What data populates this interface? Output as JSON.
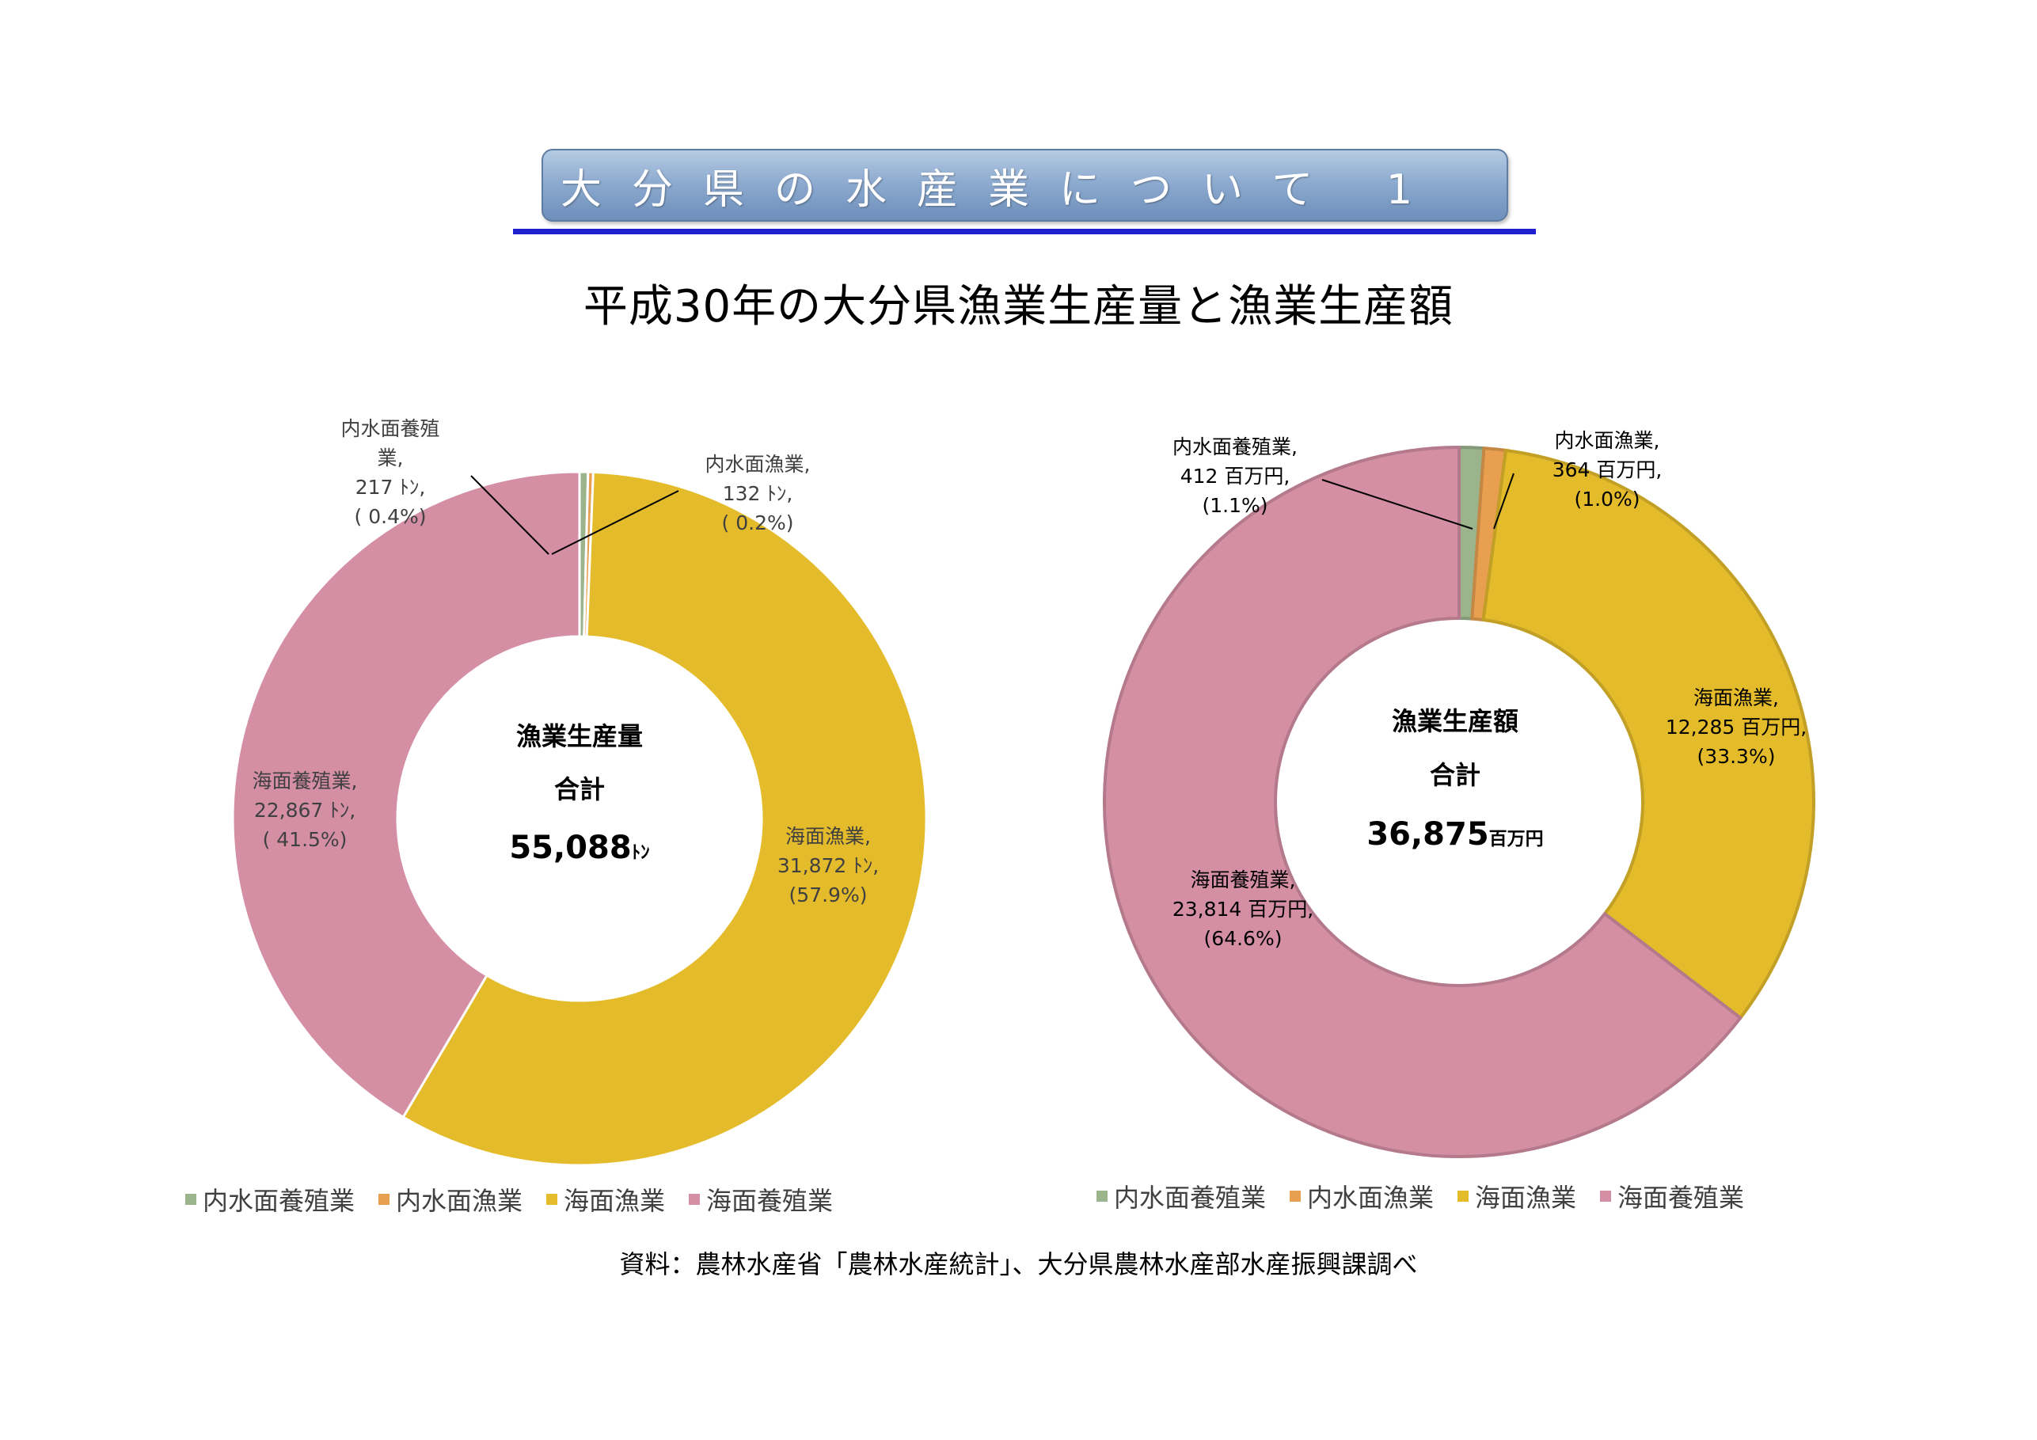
{
  "header": {
    "title": "大分県の水産業について 1",
    "subtitle": "平成30年の大分県漁業生産量と漁業生産額"
  },
  "colors": {
    "内水面養殖業": "#9bb48c",
    "内水面漁業": "#e8a050",
    "海面漁業": "#e4bb2b",
    "海面養殖業": "#d48fa5"
  },
  "chart_data": [
    {
      "type": "donut",
      "center_title": "漁業生産量",
      "center_sub": "合計",
      "center_value": "55,088",
      "center_unit": "ﾄﾝ",
      "categories": [
        "内水面養殖業",
        "内水面漁業",
        "海面漁業",
        "海面養殖業"
      ],
      "values": [
        217,
        132,
        31872,
        22867
      ],
      "unit": "ﾄﾝ",
      "labels": [
        [
          "内水面養殖",
          "業,",
          "217 ﾄﾝ,",
          "( 0.4%)"
        ],
        [
          "内水面漁業,",
          "132 ﾄﾝ,",
          "( 0.2%)"
        ],
        [
          "海面漁業,",
          "31,872 ﾄﾝ,",
          "(57.9%)"
        ],
        [
          "海面養殖業,",
          "22,867 ﾄﾝ,",
          "( 41.5%)"
        ]
      ],
      "legend": [
        "内水面養殖業",
        "内水面漁業",
        "海面漁業",
        "海面養殖業"
      ]
    },
    {
      "type": "donut",
      "center_title": "漁業生産額",
      "center_sub": "合計",
      "center_value": "36,875",
      "center_unit": "百万円",
      "categories": [
        "内水面養殖業",
        "内水面漁業",
        "海面漁業",
        "海面養殖業"
      ],
      "values": [
        412,
        364,
        12285,
        23814
      ],
      "unit": "百万円",
      "labels": [
        [
          "内水面養殖業,",
          "412 百万円,",
          "(1.1%)"
        ],
        [
          "内水面漁業,",
          "364 百万円,",
          "(1.0%)"
        ],
        [
          "海面漁業,",
          "12,285 百万円,",
          "(33.3%)"
        ],
        [
          "海面養殖業,",
          "23,814 百万円,",
          "(64.6%)"
        ]
      ],
      "legend": [
        "内水面養殖業",
        "内水面漁業",
        "海面漁業",
        "海面養殖業"
      ]
    }
  ],
  "source": "資料：農林水産省「農林水産統計」、大分県農林水産部水産振興課調べ"
}
